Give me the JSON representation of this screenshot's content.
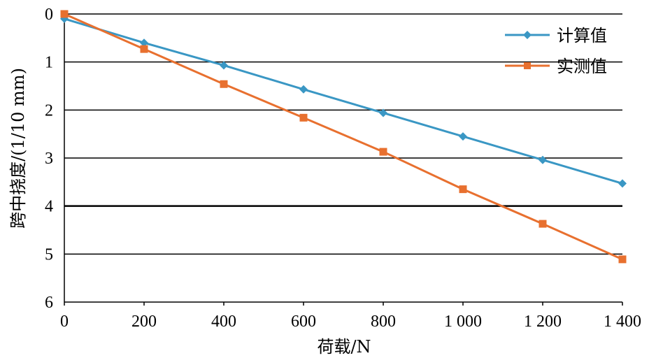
{
  "chart_data": {
    "type": "line",
    "title": "",
    "xlabel": "荷载/N",
    "ylabel": "跨中挠度/(1/10 mm)",
    "x": [
      0,
      200,
      400,
      600,
      800,
      1000,
      1200,
      1400
    ],
    "x_tick_labels": [
      "0",
      "200",
      "400",
      "600",
      "800",
      "1 000",
      "1 200",
      "1 400"
    ],
    "y_tick_labels": [
      "0",
      "1",
      "2",
      "3",
      "4",
      "5",
      "6"
    ],
    "xlim": [
      0,
      1400
    ],
    "ylim": [
      0,
      6
    ],
    "y_inverted": true,
    "grid": "horizontal",
    "legend_position": "top-right",
    "series": [
      {
        "name": "计算值",
        "color": "#3a97c4",
        "marker": "diamond",
        "values": [
          0.1,
          0.6,
          1.07,
          1.57,
          2.06,
          2.55,
          3.04,
          3.53
        ]
      },
      {
        "name": "实测值",
        "color": "#e8702f",
        "marker": "square",
        "values": [
          0.0,
          0.73,
          1.46,
          2.16,
          2.87,
          3.65,
          4.37,
          5.11
        ]
      }
    ]
  }
}
